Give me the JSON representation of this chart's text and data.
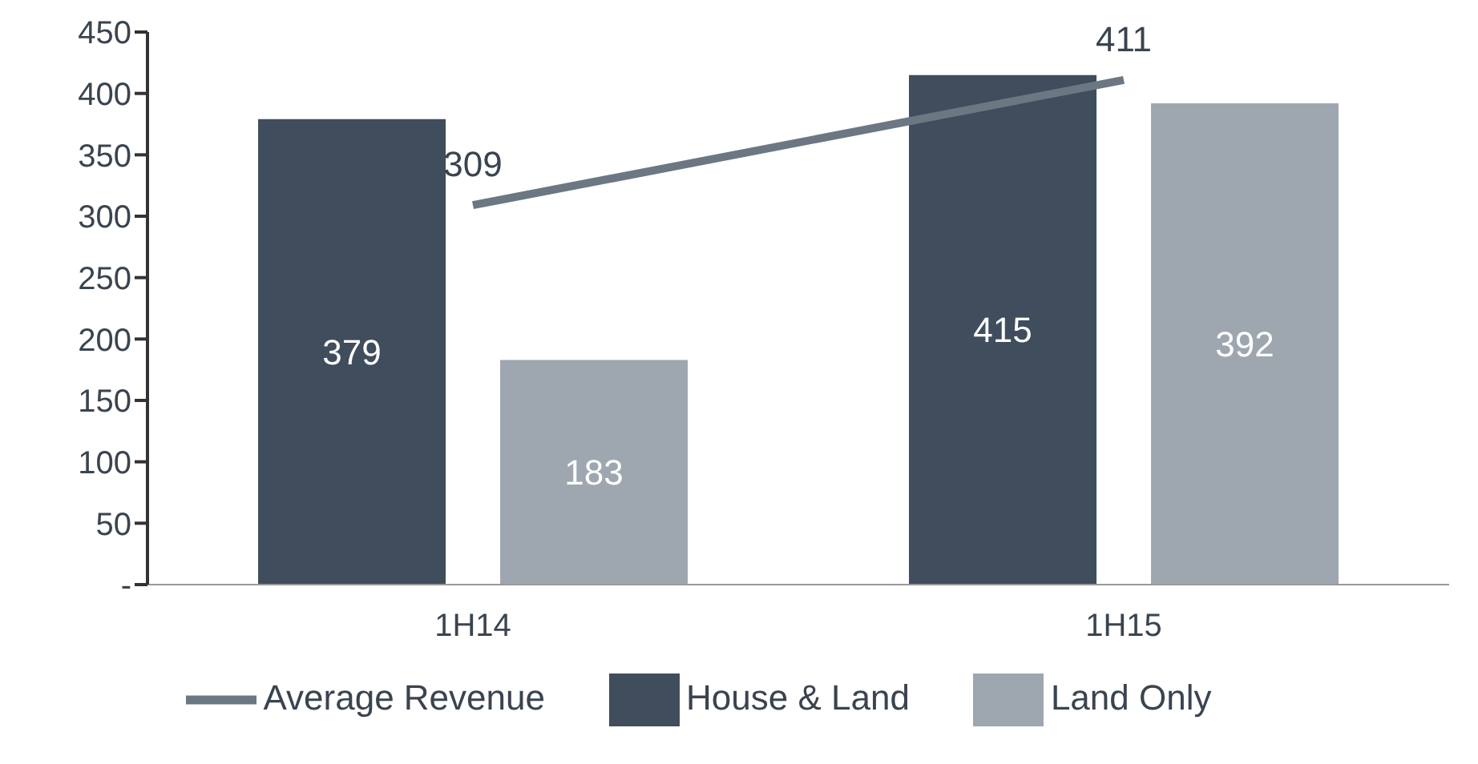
{
  "chart_data": {
    "type": "bar",
    "categories": [
      "1H14",
      "1H15"
    ],
    "series": [
      {
        "name": "House & Land",
        "color": "#3f4d5c",
        "values": [
          379,
          415
        ]
      },
      {
        "name": "Land Only",
        "color": "#9ea7af",
        "values": [
          183,
          392
        ]
      },
      {
        "name": "Average Revenue",
        "type": "line",
        "color": "#6b7782",
        "values": [
          309,
          411
        ]
      }
    ],
    "ylim": [
      0,
      450
    ],
    "yticks": [
      {
        "value": 0,
        "label": "-"
      },
      50,
      100,
      150,
      200,
      250,
      300,
      350,
      400,
      450
    ],
    "data_labels": true,
    "grid": false,
    "legend": "bottom",
    "marker": "none",
    "line_style": "solid"
  }
}
